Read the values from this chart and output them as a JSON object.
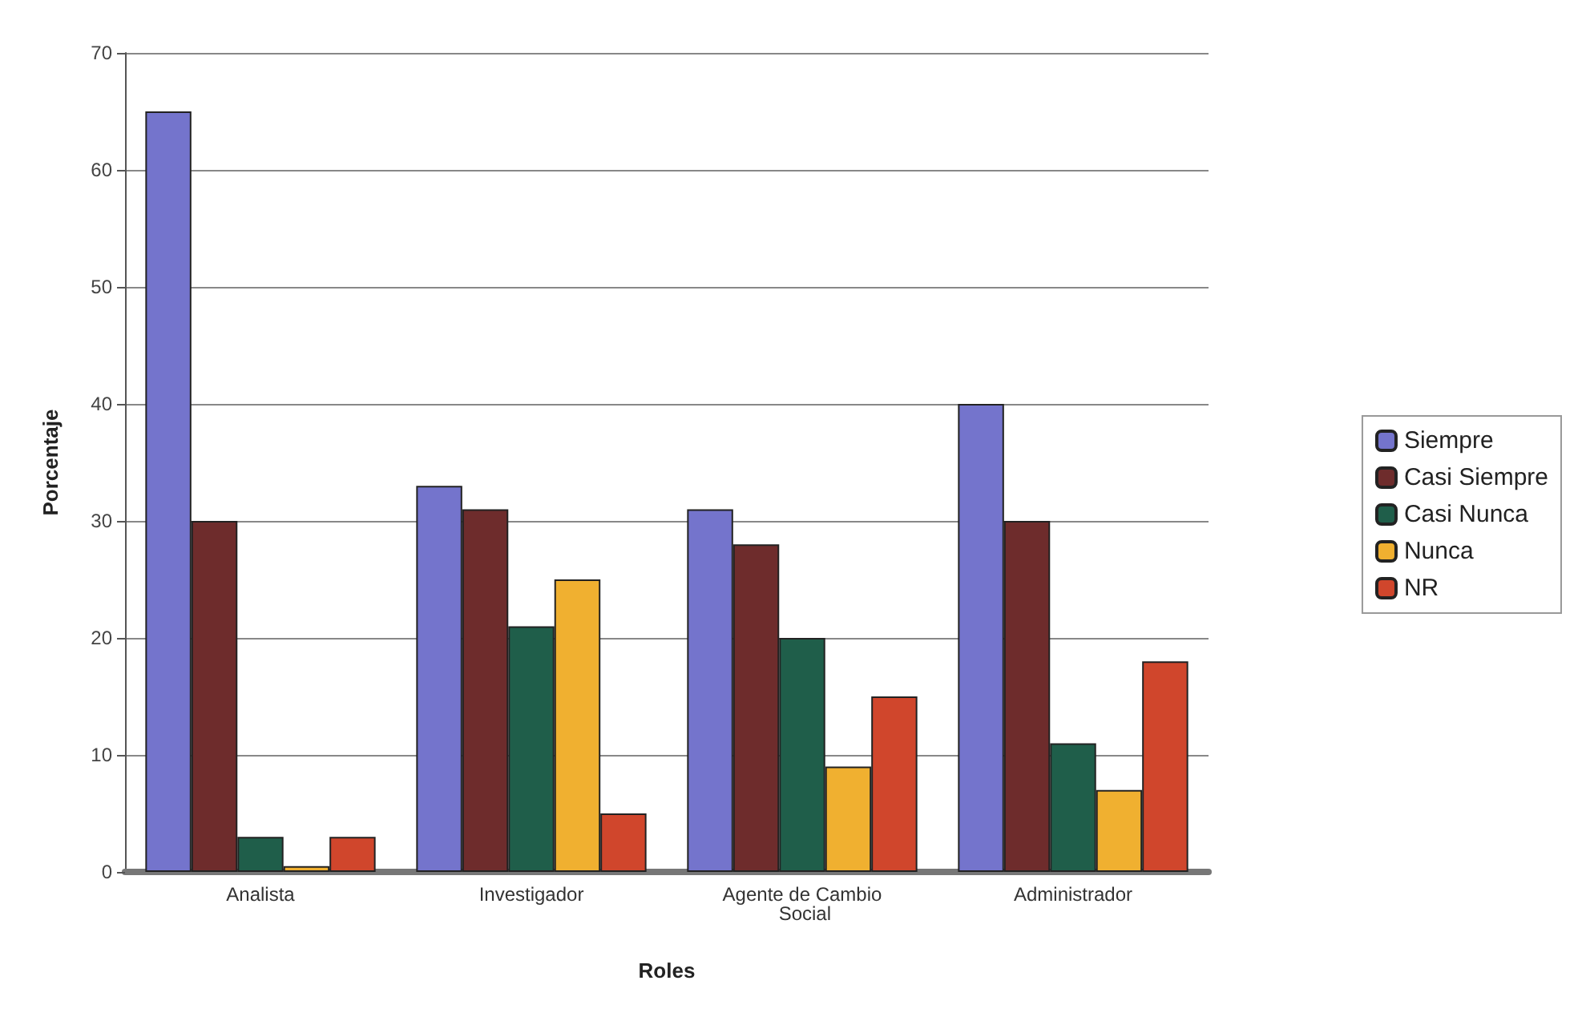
{
  "chart_data": {
    "type": "bar",
    "xlabel": "Roles",
    "ylabel": "Porcentaje",
    "categories": [
      "Analista",
      "Investigador",
      "Agente de Cambio Social",
      "Administrador"
    ],
    "series": [
      {
        "name": "Siempre",
        "color": "#7474cc",
        "values": [
          65,
          33,
          31,
          40
        ]
      },
      {
        "name": "Casi Siempre",
        "color": "#6e2c2c",
        "values": [
          30,
          31,
          28,
          30
        ]
      },
      {
        "name": "Casi Nunca",
        "color": "#1f5e4a",
        "values": [
          3,
          21,
          20,
          11
        ]
      },
      {
        "name": "Nunca",
        "color": "#f0b030",
        "values": [
          0.5,
          25,
          9,
          7
        ]
      },
      {
        "name": "NR",
        "color": "#d0462c",
        "values": [
          3,
          5,
          15,
          18
        ]
      }
    ],
    "ylim": [
      0,
      70
    ],
    "yticks": [
      0,
      10,
      20,
      30,
      40,
      50,
      60,
      70
    ],
    "grid": "y",
    "legend": "right"
  }
}
